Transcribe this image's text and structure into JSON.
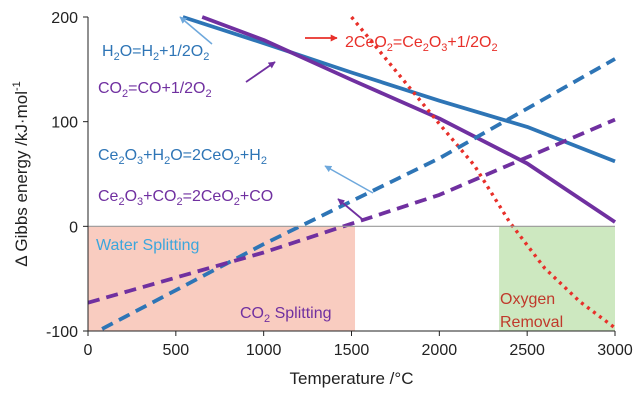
{
  "chart_data": {
    "type": "line",
    "xlabel": "Temperature /°C",
    "ylabel": "Δ Gibbs energy /kJ·mol",
    "ylabel_sup": "-1",
    "xlim": [
      0,
      3000
    ],
    "ylim": [
      -100,
      200
    ],
    "xticks": [
      0,
      500,
      1000,
      1500,
      2000,
      2500,
      3000
    ],
    "yticks": [
      -100,
      0,
      100,
      200
    ],
    "grid": false,
    "colors": {
      "water": "#2E75B6",
      "co2": "#7030A0",
      "o2": "#E8302A",
      "water_region": "#F9CCC0",
      "oxygen_region": "#CDE8C0",
      "water_text": "#3CA6DC",
      "oxygen_text": "#C0392B",
      "zero_line": "#999999",
      "axis": "#222222"
    },
    "regions": [
      {
        "label": "Water Splitting",
        "x_from": 0,
        "x_to": 1520,
        "y_from": -100,
        "y_to": 0
      },
      {
        "label": "Oxygen",
        "label2": "Removal",
        "x_from": 2340,
        "x_to": 3000,
        "y_from": -100,
        "y_to": 0
      }
    ],
    "region_labels": {
      "co2": {
        "pre": "CO",
        "sub": "2",
        "post": " Splitting"
      }
    },
    "series": [
      {
        "key": "water_split",
        "style": "solid",
        "color_key": "water",
        "x": [
          540,
          1000,
          1500,
          2000,
          2500,
          3000
        ],
        "y": [
          200,
          175,
          147,
          120,
          95,
          62
        ]
      },
      {
        "key": "co2_split",
        "style": "solid",
        "color_key": "co2",
        "x": [
          650,
          1000,
          1500,
          2000,
          2500,
          3000
        ],
        "y": [
          200,
          178,
          140,
          103,
          60,
          4
        ]
      },
      {
        "key": "ce_reduction",
        "style": "dotted",
        "color_key": "o2",
        "x": [
          1500,
          1750,
          2000,
          2200,
          2400,
          2600,
          2800,
          3000
        ],
        "y": [
          200,
          149,
          98,
          58,
          4,
          -40,
          -72,
          -97
        ]
      },
      {
        "key": "ce_h2o",
        "style": "dashed",
        "color_key": "water",
        "x": [
          80,
          1000,
          2000,
          3000
        ],
        "y": [
          -98,
          -17,
          65,
          160
        ]
      },
      {
        "key": "ce_co2",
        "style": "dashed",
        "color_key": "co2",
        "x": [
          0,
          1000,
          2000,
          3000
        ],
        "y": [
          -73,
          -25,
          30,
          102
        ]
      }
    ],
    "annotations": [
      {
        "key": "a1",
        "color_key": "water",
        "parts": [
          [
            "H",
            ""
          ],
          [
            "2",
            "sub"
          ],
          [
            "O=H",
            ""
          ],
          [
            "2",
            "sub"
          ],
          [
            "+1/2O",
            ""
          ],
          [
            "2",
            "sub"
          ]
        ]
      },
      {
        "key": "a2",
        "color_key": "co2",
        "parts": [
          [
            "CO",
            ""
          ],
          [
            "2",
            "sub"
          ],
          [
            "=CO+1/2O",
            ""
          ],
          [
            "2",
            "sub"
          ]
        ]
      },
      {
        "key": "a3",
        "color_key": "o2",
        "parts": [
          [
            "2CeO",
            ""
          ],
          [
            "2",
            "sub"
          ],
          [
            "=Ce",
            ""
          ],
          [
            "2",
            "sub"
          ],
          [
            "O",
            ""
          ],
          [
            "3",
            "sub"
          ],
          [
            "+1/2O",
            ""
          ],
          [
            "2",
            "sub"
          ]
        ]
      },
      {
        "key": "a4",
        "color_key": "water",
        "parts": [
          [
            "Ce",
            ""
          ],
          [
            "2",
            "sub"
          ],
          [
            "O",
            ""
          ],
          [
            "3",
            "sub"
          ],
          [
            "+H",
            ""
          ],
          [
            "2",
            "sub"
          ],
          [
            "O=2CeO",
            ""
          ],
          [
            "2",
            "sub"
          ],
          [
            "+H",
            ""
          ],
          [
            "2",
            "sub"
          ]
        ]
      },
      {
        "key": "a5",
        "color_key": "co2",
        "parts": [
          [
            "Ce",
            ""
          ],
          [
            "2",
            "sub"
          ],
          [
            "O",
            ""
          ],
          [
            "3",
            "sub"
          ],
          [
            "+CO",
            ""
          ],
          [
            "2",
            "sub"
          ],
          [
            "=2CeO",
            ""
          ],
          [
            "2",
            "sub"
          ],
          [
            "+CO",
            ""
          ]
        ]
      }
    ]
  }
}
